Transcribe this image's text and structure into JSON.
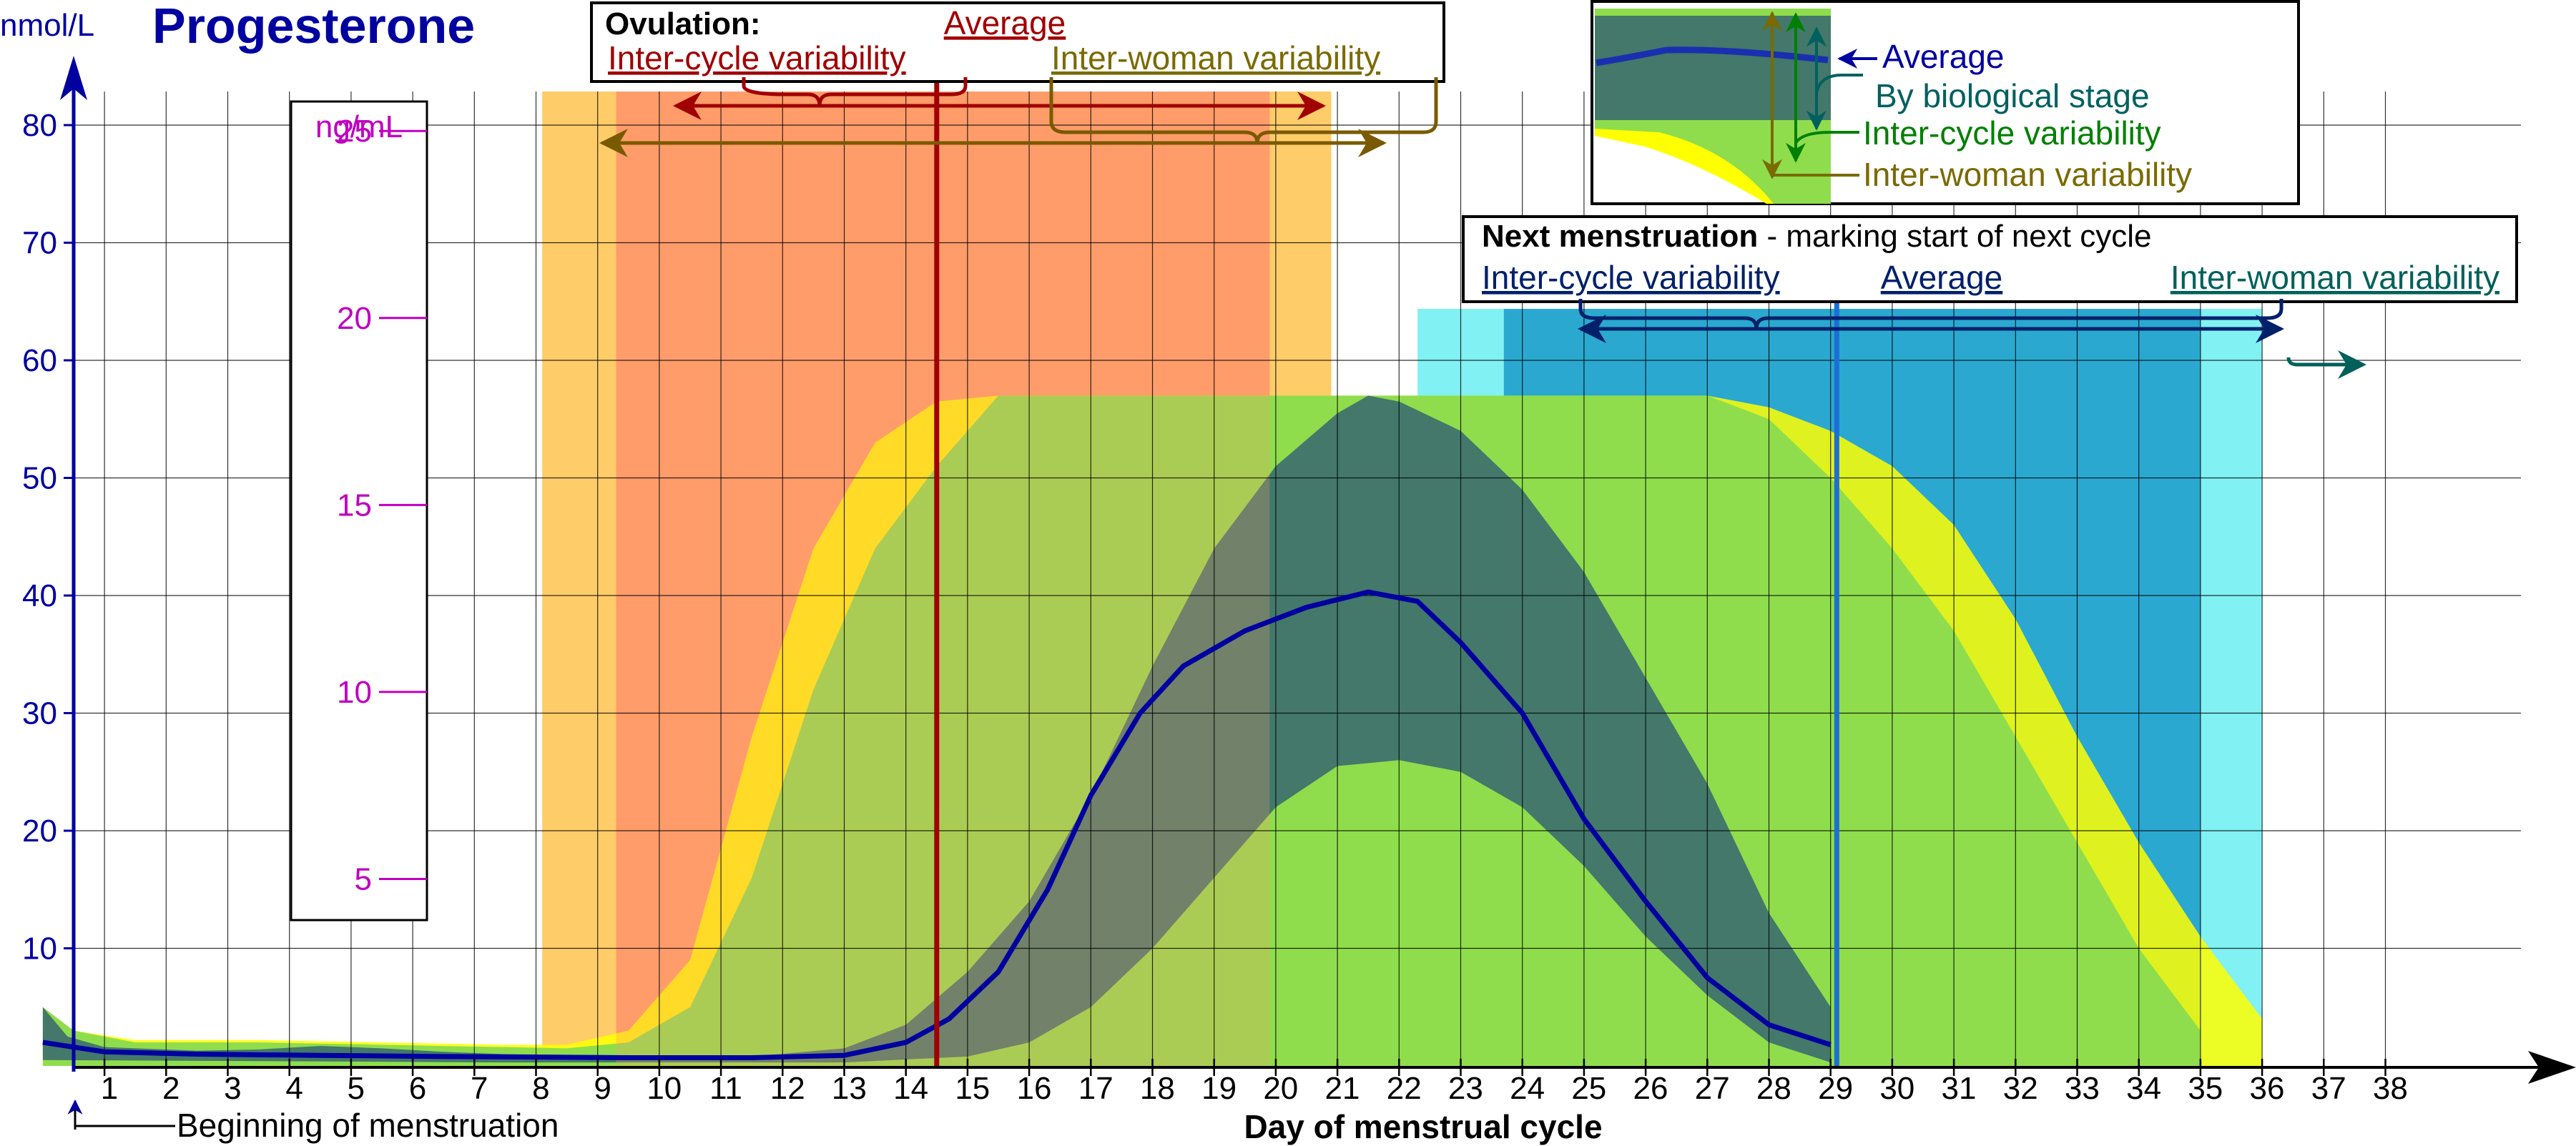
{
  "chart_data": {
    "type": "area",
    "title": "Progesterone",
    "ylabel": "nmol/L",
    "ylabel2": "ng/mL",
    "xlabel": "Day of menstrual cycle",
    "ylim": [
      0,
      80
    ],
    "xlim": [
      0.5,
      39
    ],
    "y_ticks": [
      10,
      20,
      30,
      40,
      50,
      60,
      70,
      80
    ],
    "y2_ticks": [
      {
        "label": "5",
        "nmol": 15.9
      },
      {
        "label": "10",
        "nmol": 31.8
      },
      {
        "label": "15",
        "nmol": 47.7
      },
      {
        "label": "20",
        "nmol": 63.6
      },
      {
        "label": "25",
        "nmol": 79.5
      }
    ],
    "x_ticks": [
      "1",
      "2",
      "3",
      "4",
      "5",
      "6",
      "7",
      "8",
      "9",
      "10",
      "11",
      "12",
      "13",
      "14",
      "15",
      "16",
      "17",
      "18",
      "19",
      "20",
      "21",
      "22",
      "23",
      "24",
      "25",
      "26",
      "27",
      "28",
      "29",
      "30",
      "31",
      "32",
      "33",
      "34",
      "35",
      "36",
      "37",
      "38"
    ],
    "grid": true,
    "bands": [
      {
        "name": "Inter-woman variability",
        "color": "#ffff00",
        "opacity": 0.85,
        "upper": [
          [
            0.5,
            5
          ],
          [
            1,
            3
          ],
          [
            2,
            2.2
          ],
          [
            4,
            2.2
          ],
          [
            6,
            2
          ],
          [
            8,
            1.8
          ],
          [
            9,
            1.8
          ],
          [
            10,
            3
          ],
          [
            11,
            9
          ],
          [
            12,
            28
          ],
          [
            13,
            44
          ],
          [
            14,
            53
          ],
          [
            15,
            56.5
          ],
          [
            16,
            57
          ],
          [
            20,
            57
          ],
          [
            27.5,
            57
          ],
          [
            28.5,
            56
          ],
          [
            29.5,
            54
          ],
          [
            30.5,
            51
          ],
          [
            31.5,
            46
          ],
          [
            32.5,
            38
          ],
          [
            33.5,
            28
          ],
          [
            34.5,
            19
          ],
          [
            35.5,
            11
          ],
          [
            36.5,
            4
          ],
          [
            36.5,
            0
          ]
        ],
        "lower": [
          [
            36.5,
            0
          ],
          [
            0.5,
            0
          ]
        ]
      },
      {
        "name": "Inter-cycle variability",
        "color": "#8fdd4c",
        "opacity": 1,
        "upper": [
          [
            0.5,
            5
          ],
          [
            1,
            3
          ],
          [
            2,
            2
          ],
          [
            4,
            2
          ],
          [
            6,
            1.8
          ],
          [
            8,
            1.6
          ],
          [
            9,
            1.5
          ],
          [
            10,
            2
          ],
          [
            11,
            5
          ],
          [
            12,
            16
          ],
          [
            13,
            32
          ],
          [
            14,
            44
          ],
          [
            15,
            51
          ],
          [
            16,
            57
          ],
          [
            20,
            57
          ],
          [
            27.5,
            57
          ],
          [
            28.5,
            55
          ],
          [
            29.5,
            50
          ],
          [
            30.5,
            44
          ],
          [
            31.5,
            37
          ],
          [
            32.5,
            28
          ],
          [
            33.5,
            19
          ],
          [
            34.5,
            10
          ],
          [
            35.5,
            3
          ],
          [
            35.5,
            0
          ]
        ],
        "lower": [
          [
            35.5,
            0
          ],
          [
            0.5,
            0
          ]
        ]
      },
      {
        "name": "By biological stage",
        "color": "#43786a",
        "opacity": 1,
        "upper": [
          [
            0.5,
            5
          ],
          [
            0.9,
            2.5
          ],
          [
            1.5,
            1.6
          ],
          [
            3,
            1.3
          ],
          [
            4,
            1.4
          ],
          [
            5,
            1.7
          ],
          [
            6,
            1.5
          ],
          [
            7,
            1.2
          ],
          [
            8,
            1
          ],
          [
            12,
            0.8
          ],
          [
            13.5,
            1.5
          ],
          [
            14.5,
            3.5
          ],
          [
            15.5,
            8
          ],
          [
            16.5,
            14
          ],
          [
            17.5,
            23
          ],
          [
            18.5,
            34
          ],
          [
            19.5,
            44
          ],
          [
            20.5,
            51
          ],
          [
            21.5,
            55.5
          ],
          [
            22,
            57
          ],
          [
            22.5,
            56.5
          ],
          [
            23.5,
            54
          ],
          [
            24.5,
            49
          ],
          [
            25.5,
            42
          ],
          [
            26.5,
            33
          ],
          [
            27.5,
            24
          ],
          [
            28.5,
            13
          ],
          [
            29.5,
            5
          ]
        ],
        "lower": [
          [
            29.5,
            0.3
          ],
          [
            28.5,
            2
          ],
          [
            27.5,
            6
          ],
          [
            26.5,
            11
          ],
          [
            25.5,
            17
          ],
          [
            24.5,
            22
          ],
          [
            23.5,
            25
          ],
          [
            22.5,
            26
          ],
          [
            21.5,
            25.5
          ],
          [
            20.5,
            22
          ],
          [
            19.5,
            16
          ],
          [
            18.5,
            10
          ],
          [
            17.5,
            5
          ],
          [
            16.5,
            2
          ],
          [
            15.5,
            0.8
          ],
          [
            13.5,
            0.3
          ],
          [
            8,
            0.3
          ],
          [
            0.5,
            0.5
          ]
        ]
      }
    ],
    "series": [
      {
        "name": "Average",
        "color": "#0000a0",
        "points": [
          [
            0.5,
            2
          ],
          [
            1.5,
            1.2
          ],
          [
            3,
            1
          ],
          [
            5,
            0.9
          ],
          [
            7,
            0.8
          ],
          [
            10,
            0.7
          ],
          [
            12,
            0.7
          ],
          [
            13.5,
            0.9
          ],
          [
            14.5,
            2
          ],
          [
            15.2,
            4
          ],
          [
            16,
            8
          ],
          [
            16.8,
            15
          ],
          [
            17.5,
            23
          ],
          [
            18.3,
            30
          ],
          [
            19,
            34
          ],
          [
            20,
            37
          ],
          [
            21,
            39
          ],
          [
            22,
            40.3
          ],
          [
            22.8,
            39.5
          ],
          [
            23.5,
            36
          ],
          [
            24.5,
            30
          ],
          [
            25.5,
            21
          ],
          [
            26.5,
            14
          ],
          [
            27.5,
            7.5
          ],
          [
            28.5,
            3.5
          ],
          [
            29.5,
            1.8
          ]
        ]
      }
    ],
    "ovulation_columns": {
      "inter_woman": [
        8.6,
        21.4
      ],
      "inter_cycle": [
        9.8,
        20.4
      ],
      "average": 15.0
    },
    "menstruation_columns": {
      "inter_woman": [
        22.8,
        36.5
      ],
      "inter_cycle": [
        24.2,
        35.5
      ],
      "average": 29.6
    }
  },
  "labels": {
    "y_unit": "nmol/L",
    "title": "Progesterone",
    "y2_unit": "ng/mL",
    "x_title": "Day of menstrual cycle",
    "beginning": "Beginning of menstruation",
    "ovulation": {
      "title": "Ovulation:",
      "average": "Average",
      "inter_cycle": "Inter-cycle variability",
      "inter_woman": "Inter-woman variability"
    },
    "next_menstruation": {
      "title": "Next menstruation",
      "subtitle": " - marking start of next cycle",
      "inter_cycle": "Inter-cycle variability",
      "average": "Average",
      "inter_woman": "Inter-woman variability"
    },
    "legend": {
      "average": "Average",
      "stage": "By biological stage",
      "cycle": "Inter-cycle variability",
      "woman": "Inter-woman variability"
    }
  },
  "colors": {
    "axis": "#0000a0",
    "grid": "#000000",
    "ovulation_woman": "#ffc65a",
    "ovulation_cycle": "#ff9a6a",
    "ovulation_average": "#a00000",
    "ovulation_woman_arrow": "#7a5a00",
    "menses_woman": "#73f0f2",
    "menses_cycle": "#1c9bc9",
    "menses_average": "#1c6fd6",
    "menses_arrow": "#00206a",
    "menses_arrow2": "#00605a",
    "ng_ml": "#c000c0",
    "legend_stage": "#006060",
    "legend_cycle": "#008000",
    "legend_woman": "#7a6a00"
  }
}
